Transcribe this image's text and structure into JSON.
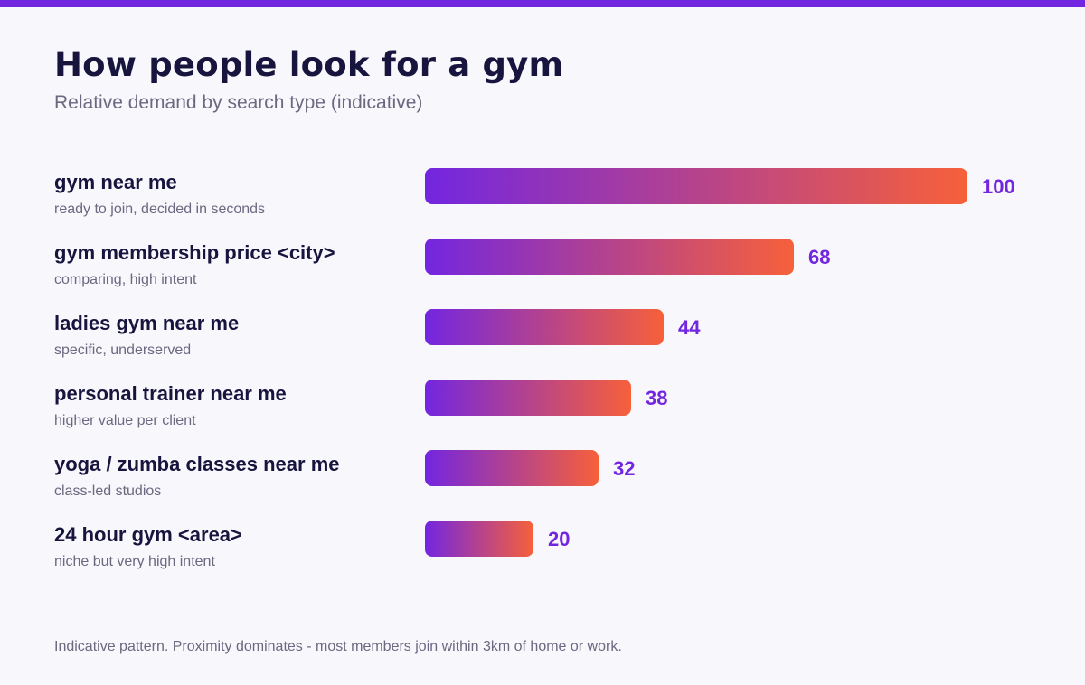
{
  "header": {
    "title": "How people look for a gym",
    "subtitle": "Relative demand by search type (indicative)"
  },
  "footer": {
    "note": "Indicative pattern. Proximity dominates - most members join within 3km of home or work."
  },
  "colors": {
    "accent": "#7326e0",
    "bar_start": "#7326e0",
    "bar_end": "#f6603a",
    "value_text": "#7326e0"
  },
  "chart_data": {
    "type": "bar",
    "orientation": "horizontal",
    "categories": [
      "gym near me",
      "gym membership price <city>",
      "ladies gym near me",
      "personal trainer near me",
      "yoga / zumba classes near me",
      "24 hour gym <area>"
    ],
    "descriptions": [
      "ready to join, decided in seconds",
      "comparing, high intent",
      "specific, underserved",
      "higher value per client",
      "class-led studios",
      "niche but very high intent"
    ],
    "values": [
      100,
      68,
      44,
      38,
      32,
      20
    ],
    "xlim": [
      0,
      100
    ],
    "grid": false,
    "legend": "none"
  }
}
